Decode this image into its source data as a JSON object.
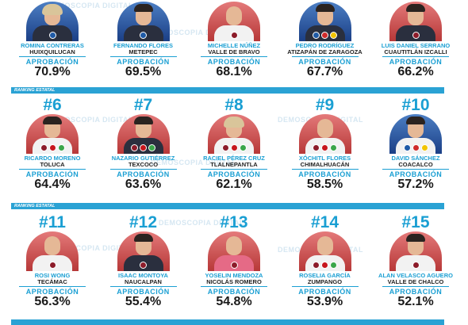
{
  "watermark": "DEMOSCOPIA DIGITAL",
  "approval_label": "APROBACIÓN",
  "ranking_label": "RANKING ESTATAL",
  "rows": [
    {
      "cards": [
        {
          "rank": "",
          "name": "ROMINA CONTRERAS",
          "municipality": "HUIXQUILUCAN",
          "approval": "70.9%"
        },
        {
          "rank": "",
          "name": "FERNANDO FLORES",
          "municipality": "METEPEC",
          "approval": "69.5%"
        },
        {
          "rank": "",
          "name": "MICHELLE NÚÑEZ",
          "municipality": "VALLE DE BRAVO",
          "approval": "68.1%"
        },
        {
          "rank": "",
          "name": "PEDRO RODRÍGUEZ",
          "municipality": "ATIZAPÁN DE ZARAGOZA",
          "approval": "67.7%"
        },
        {
          "rank": "",
          "name": "LUIS DANIEL SERRANO",
          "municipality": "CUAUTITLÁN IZCALLI",
          "approval": "66.2%"
        }
      ]
    },
    {
      "cards": [
        {
          "rank": "#6",
          "name": "RICARDO MORENO",
          "municipality": "TOLUCA",
          "approval": "64.4%"
        },
        {
          "rank": "#7",
          "name": "NAZARIO GUTIÉRREZ",
          "municipality": "TEXCOCO",
          "approval": "63.6%"
        },
        {
          "rank": "#8",
          "name": "RACIEL PÉREZ CRUZ",
          "municipality": "TLALNEPANTLA",
          "approval": "62.1%"
        },
        {
          "rank": "#9",
          "name": "XÓCHITL FLORES",
          "municipality": "CHIMALHUACÁN",
          "approval": "58.5%"
        },
        {
          "rank": "#10",
          "name": "DAVID SÁNCHEZ",
          "municipality": "COACALCO",
          "approval": "57.2%"
        }
      ]
    },
    {
      "cards": [
        {
          "rank": "#11",
          "name": "ROSI WONG",
          "municipality": "TECÁMAC",
          "approval": "56.3%"
        },
        {
          "rank": "#12",
          "name": "ISAAC MONTOYA",
          "municipality": "NAUCALPAN",
          "approval": "55.4%"
        },
        {
          "rank": "#13",
          "name": "YOSELIN MENDOZA",
          "municipality": "NICOLÁS ROMERO",
          "approval": "54.8%"
        },
        {
          "rank": "#14",
          "name": "ROSELIA GARCÍA",
          "municipality": "ZUMPANGO",
          "approval": "53.9%"
        },
        {
          "rank": "#15",
          "name": "ALAN VELASCO AGUERO",
          "municipality": "VALLE DE CHALCO",
          "approval": "52.1%"
        }
      ]
    }
  ]
}
